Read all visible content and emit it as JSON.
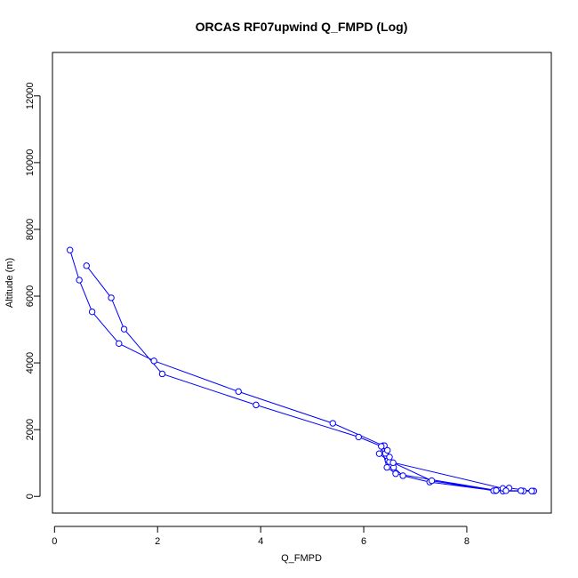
{
  "chart_data": {
    "type": "line",
    "title": "ORCAS RF07upwind Q_FMPD (Log)",
    "xlabel": "Q_FMPD",
    "ylabel": "Altitude (m)",
    "xlim": [
      -0.04,
      9.64
    ],
    "ylim": [
      -500,
      13300
    ],
    "x_ticks": [
      0,
      2,
      4,
      6,
      8
    ],
    "y_ticks": [
      0,
      2000,
      4000,
      6000,
      8000,
      10000,
      12000
    ],
    "grid": false,
    "legend": "none",
    "series": [
      {
        "color": "#0000ff",
        "marker": "open-circle",
        "points": [
          [
            0.3,
            7380
          ],
          [
            0.48,
            6480
          ],
          [
            0.73,
            5530
          ],
          [
            1.25,
            4580
          ],
          [
            1.93,
            4060
          ],
          [
            3.57,
            3140
          ],
          [
            5.4,
            2190
          ],
          [
            6.38,
            1520
          ],
          [
            6.42,
            1290
          ],
          [
            6.47,
            1080
          ],
          [
            6.58,
            870
          ],
          [
            6.76,
            620
          ],
          [
            7.28,
            430
          ],
          [
            8.56,
            170
          ],
          [
            8.7,
            160
          ],
          [
            9.1,
            160
          ],
          [
            9.3,
            160
          ],
          [
            9.26,
            160
          ],
          [
            8.82,
            250
          ],
          [
            8.7,
            240
          ],
          [
            6.5,
            1040
          ],
          [
            6.3,
            1280
          ],
          [
            6.4,
            1520
          ],
          [
            6.46,
            1380
          ],
          [
            6.5,
            1180
          ],
          [
            6.57,
            1010
          ],
          [
            7.32,
            470
          ],
          [
            8.52,
            170
          ],
          [
            9.05,
            170
          ],
          [
            8.76,
            170
          ],
          [
            8.57,
            180
          ],
          [
            6.62,
            680
          ],
          [
            6.45,
            870
          ],
          [
            6.34,
            1500
          ],
          [
            5.9,
            1780
          ],
          [
            3.91,
            2740
          ],
          [
            2.09,
            3670
          ],
          [
            1.35,
            5010
          ],
          [
            1.1,
            5950
          ],
          [
            0.62,
            6910
          ]
        ]
      }
    ]
  }
}
